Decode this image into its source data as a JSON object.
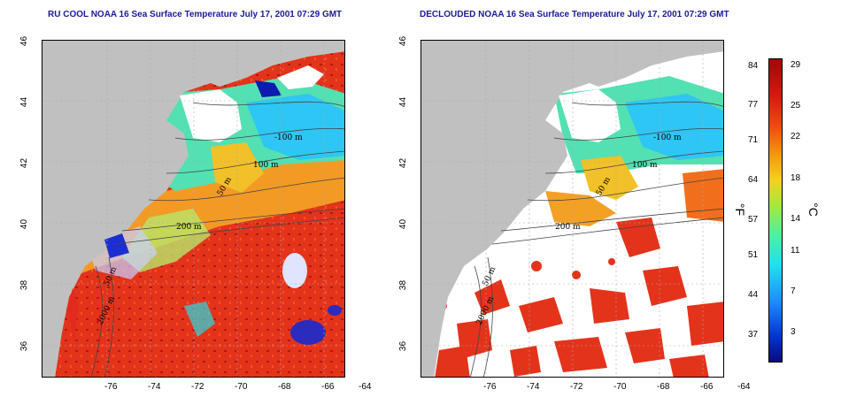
{
  "titles": {
    "left": "RU COOL NOAA 16 Sea Surface Temperature July 17, 2001 07:29 GMT",
    "right": "DECLOUDED NOAA 16 Sea Surface Temperature July 17, 2001 07:29 GMT"
  },
  "axes": {
    "x_ticks": [
      "-76",
      "-74",
      "-72",
      "-70",
      "-68",
      "-66",
      "-64"
    ],
    "y_ticks": [
      "36",
      "38",
      "40",
      "42",
      "44",
      "46"
    ]
  },
  "contours": {
    "left": [
      "-100 m",
      "100 m",
      "50 m",
      "200 m",
      "50 m",
      "2000 m"
    ],
    "right": [
      "-100 m",
      "100 m",
      "50 m",
      "200 m",
      "50 m",
      "2000 m"
    ]
  },
  "colorbar": {
    "fahrenheit_unit": "°F",
    "celsius_unit": "°C",
    "fahrenheit": [
      "84",
      "77",
      "71",
      "64",
      "57",
      "51",
      "44",
      "37"
    ],
    "celsius": [
      "29",
      "25",
      "22",
      "18",
      "14",
      "11",
      "7",
      "3"
    ]
  },
  "colors": {
    "land": "#c0c0c0",
    "title": "#1a1a9a",
    "warm": "#e0281a",
    "cool": "#30d8e8"
  }
}
